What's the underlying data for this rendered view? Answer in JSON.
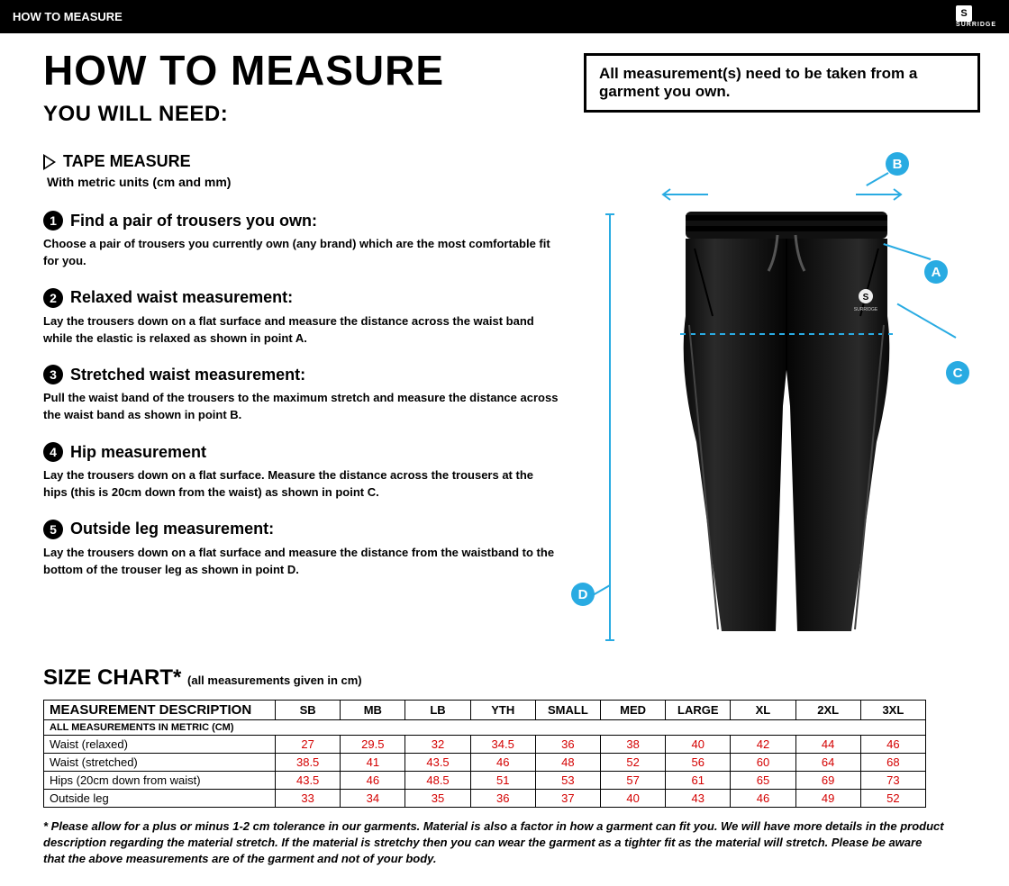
{
  "header": {
    "title": "HOW TO MEASURE",
    "brand": "SURRIDGE"
  },
  "main_title": "HOW TO MEASURE",
  "subtitle": "YOU WILL NEED:",
  "notice": "All measurement(s) need to be taken from a garment you own.",
  "tape": {
    "title": "TAPE MEASURE",
    "sub": "With metric units (cm and mm)"
  },
  "steps": [
    {
      "num": "1",
      "title": "Find a pair of trousers you own:",
      "body": "Choose a pair of trousers you currently own (any brand) which are the most comfortable fit for you."
    },
    {
      "num": "2",
      "title": "Relaxed waist measurement:",
      "body": "Lay the trousers down on a flat surface and measure the distance across the waist band while the elastic is relaxed as shown in point A."
    },
    {
      "num": "3",
      "title": "Stretched waist measurement:",
      "body": "Pull the waist band of the trousers to the maximum stretch and measure the distance across the waist band as shown in point B."
    },
    {
      "num": "4",
      "title": "Hip measurement",
      "body": "Lay the trousers down on a flat surface. Measure the distance across the trousers at the hips (this is 20cm down from the waist)  as shown in point C."
    },
    {
      "num": "5",
      "title": "Outside leg measurement:",
      "body": "Lay the trousers down on a flat surface and measure the distance from the waistband to the bottom of the trouser  leg as shown in point D."
    }
  ],
  "markers": {
    "a": "A",
    "b": "B",
    "c": "C",
    "d": "D"
  },
  "size_chart": {
    "title": "SIZE CHART*",
    "sub": "(all measurements given in cm)",
    "desc_header": "MEASUREMENT DESCRIPTION",
    "metric_note": "ALL MEASUREMENTS IN METRIC (CM)",
    "sizes": [
      "SB",
      "MB",
      "LB",
      "YTH",
      "SMALL",
      "MED",
      "LARGE",
      "XL",
      "2XL",
      "3XL"
    ],
    "rows": [
      {
        "label": "Waist (relaxed)",
        "values": [
          "27",
          "29.5",
          "32",
          "34.5",
          "36",
          "38",
          "40",
          "42",
          "44",
          "46"
        ]
      },
      {
        "label": "Waist (stretched)",
        "values": [
          "38.5",
          "41",
          "43.5",
          "46",
          "48",
          "52",
          "56",
          "60",
          "64",
          "68"
        ]
      },
      {
        "label": "Hips (20cm down from waist)",
        "values": [
          "43.5",
          "46",
          "48.5",
          "51",
          "53",
          "57",
          "61",
          "65",
          "69",
          "73"
        ]
      },
      {
        "label": "Outside leg",
        "values": [
          "33",
          "34",
          "35",
          "36",
          "37",
          "40",
          "43",
          "46",
          "49",
          "52"
        ]
      }
    ],
    "value_color": "#d40000"
  },
  "footnote": "* Please allow for a plus or minus 1-2 cm tolerance in our garments. Material is also a factor in how a garment can fit you. We will have more details in the product description regarding the material stretch.  If the material is stretchy then you can wear the garment as a tighter fit as the material will stretch.  Please be aware that the above measurements are of the garment and not of your body.",
  "colors": {
    "accent": "#29abe2",
    "value": "#d40000"
  }
}
